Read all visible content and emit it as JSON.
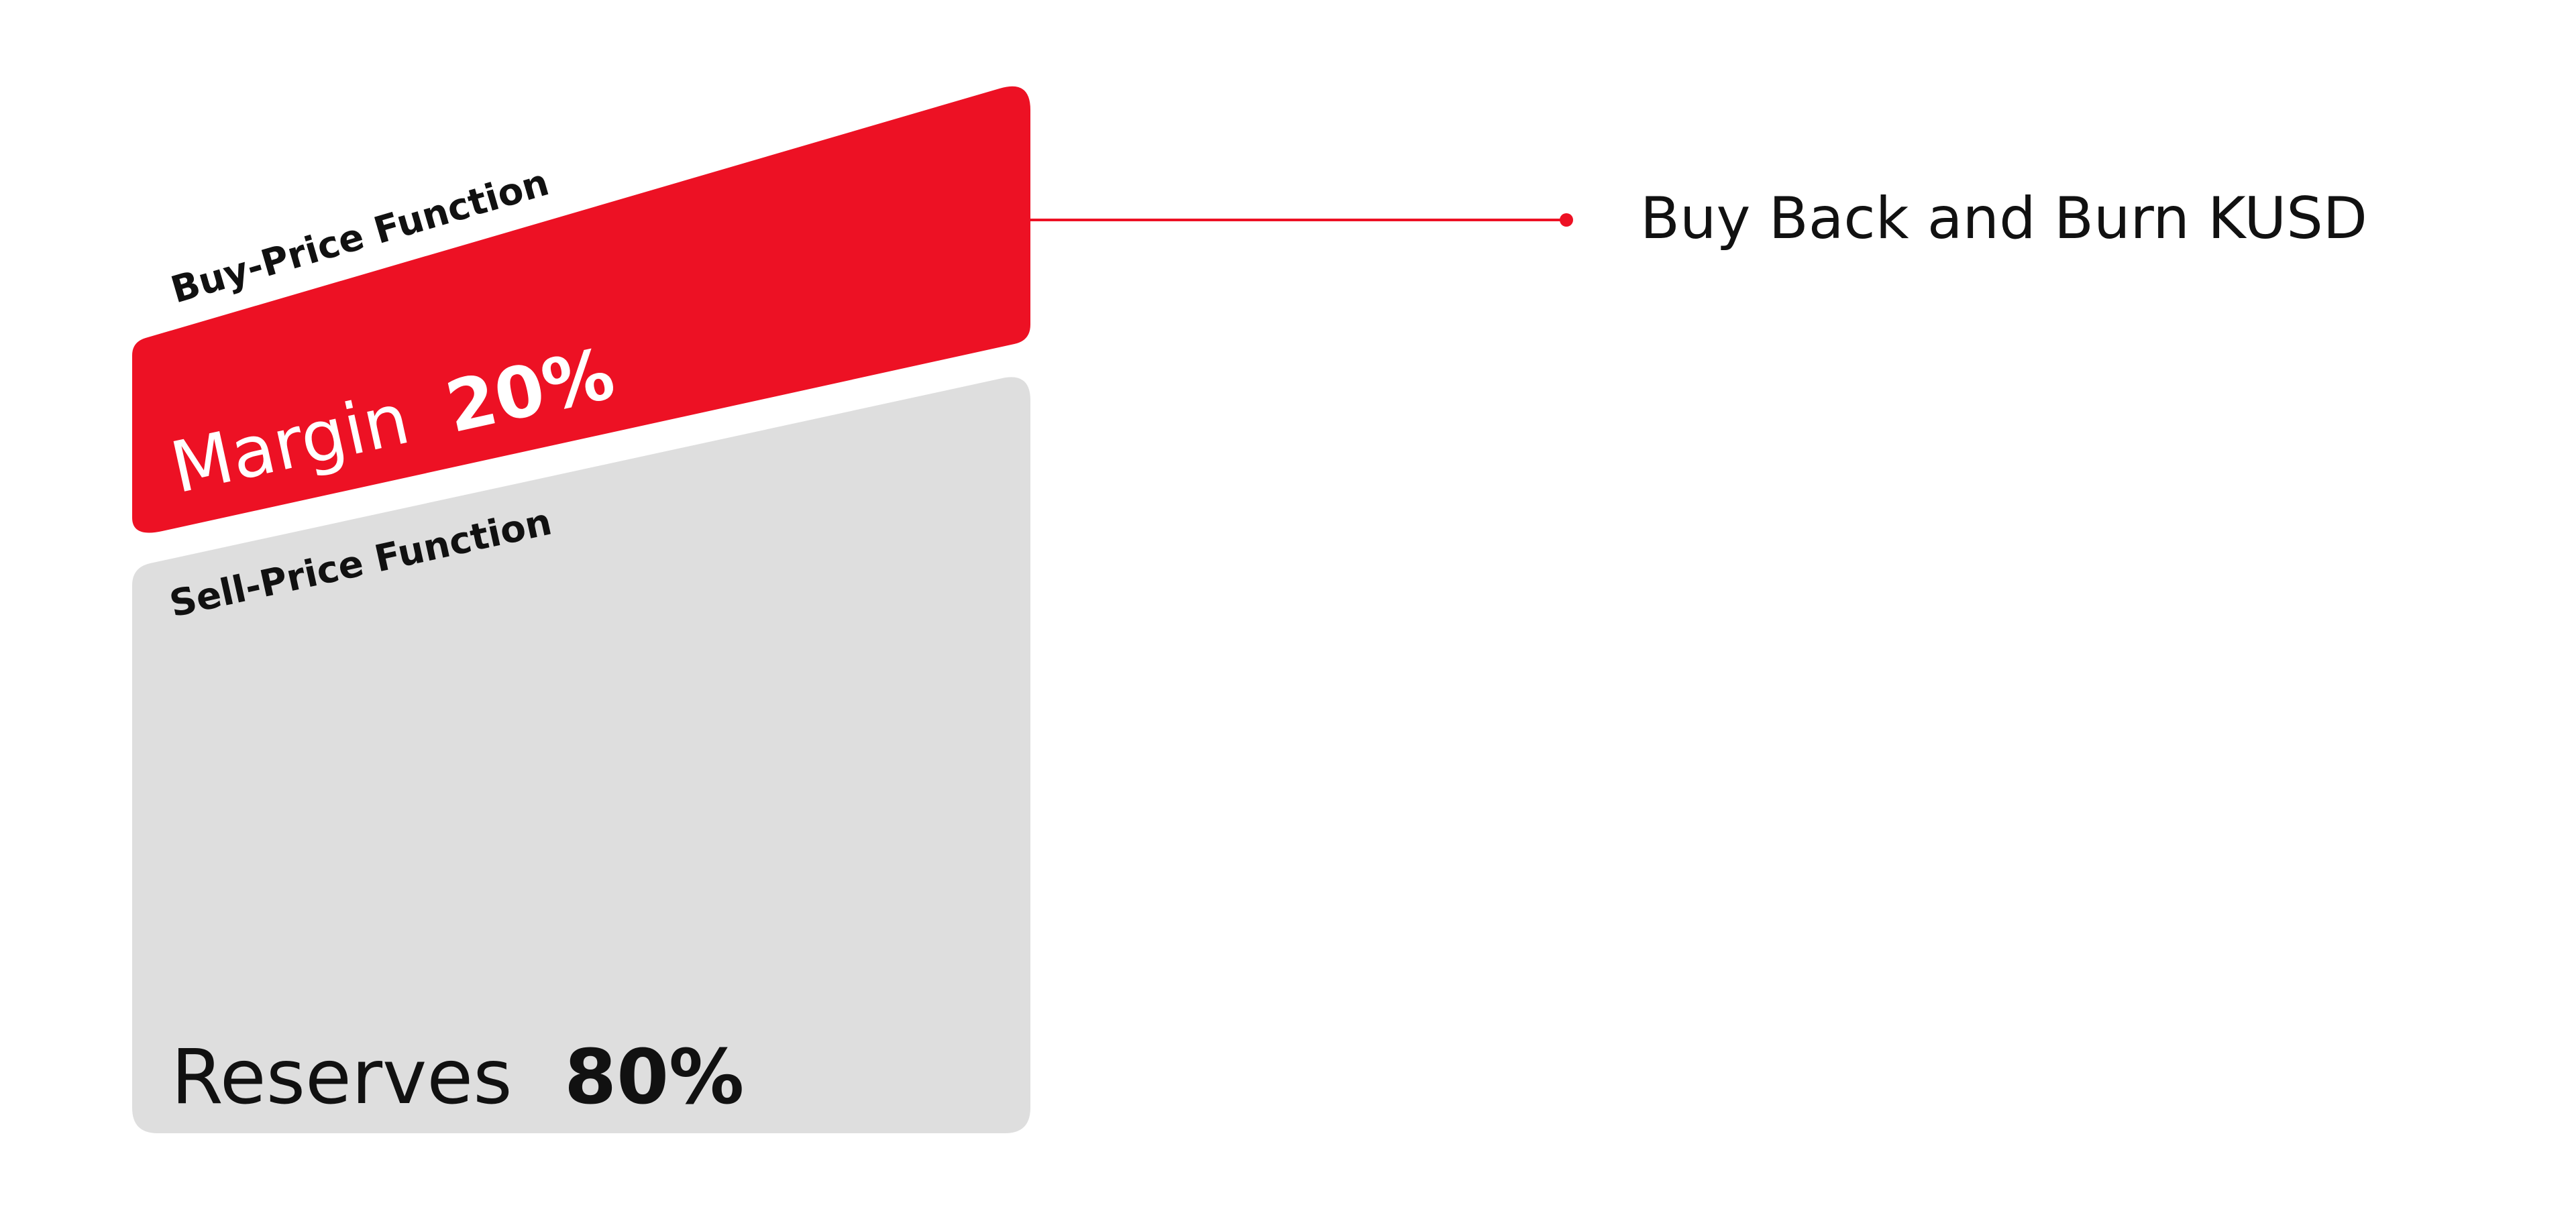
{
  "colors": {
    "margin_block": "#ED1124",
    "reserves_block": "#DEDEDE",
    "connector": "#ED1124",
    "text_dark": "#111111",
    "text_on_red": "#FFFFFF"
  },
  "buy_price_function": {
    "label": "Buy-Price Function"
  },
  "margin": {
    "label": "Margin",
    "percent": "20%"
  },
  "sell_price_function": {
    "label": "Sell-Price Function"
  },
  "reserves": {
    "label": "Reserves",
    "percent": "80%"
  },
  "annotation": {
    "text": "Buy Back and Burn KUSD"
  }
}
